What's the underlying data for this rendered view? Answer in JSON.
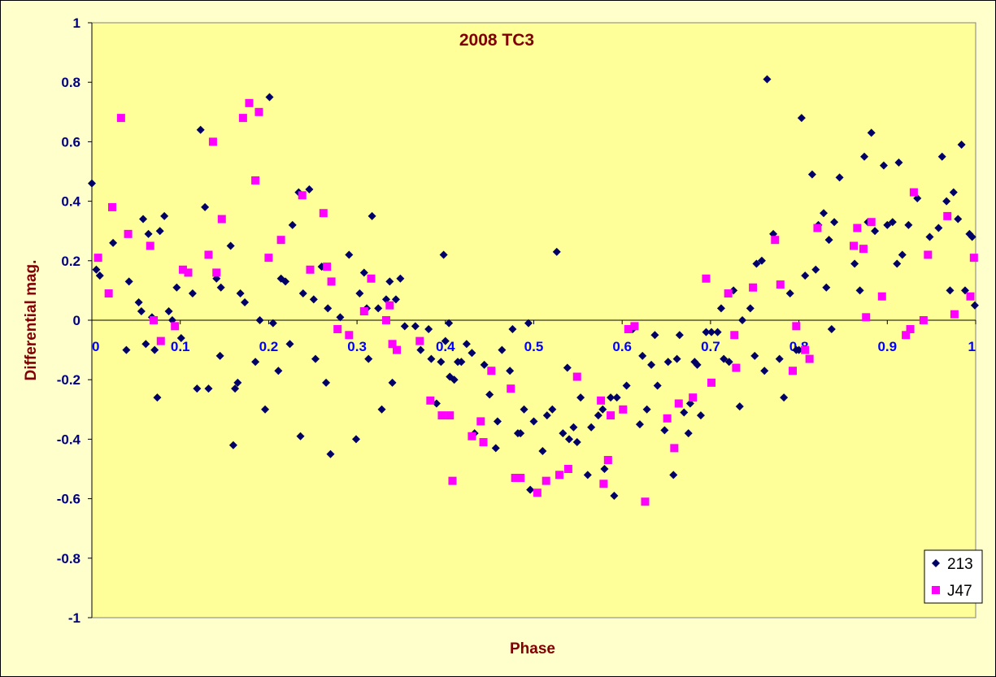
{
  "chart_data": {
    "type": "scatter",
    "title": "2008 TC3",
    "xlabel": "Phase",
    "ylabel": "Differential mag.",
    "xlim": [
      0,
      1
    ],
    "ylim": [
      -1,
      1
    ],
    "xticks": [
      "0",
      "0.1",
      "0.2",
      "0.3",
      "0.4",
      "0.5",
      "0.6",
      "0.7",
      "0.8",
      "0.9",
      "1"
    ],
    "yticks": [
      "1",
      "0.8",
      "0.6",
      "0.4",
      "0.2",
      "0",
      "-0.2",
      "-0.4",
      "-0.6",
      "-0.8",
      "-1"
    ],
    "grid": false,
    "legend_position": "bottom-right",
    "colors": {
      "plot_bg": "#ffff99",
      "chart_bg": "#ffffcc",
      "title": "#800000",
      "x_ticks": "#0000ff",
      "y_ticks": "#000080"
    },
    "series": [
      {
        "name": "213",
        "marker": "diamond",
        "color": "#000066",
        "points": [
          [
            0.0,
            0.46
          ],
          [
            0.005,
            0.17
          ],
          [
            0.009,
            0.15
          ],
          [
            0.024,
            0.26
          ],
          [
            0.039,
            -0.1
          ],
          [
            0.042,
            0.13
          ],
          [
            0.053,
            0.06
          ],
          [
            0.056,
            0.03
          ],
          [
            0.058,
            0.34
          ],
          [
            0.061,
            -0.08
          ],
          [
            0.064,
            0.29
          ],
          [
            0.068,
            0.01
          ],
          [
            0.071,
            -0.1
          ],
          [
            0.074,
            -0.26
          ],
          [
            0.077,
            0.3
          ],
          [
            0.082,
            0.35
          ],
          [
            0.087,
            0.03
          ],
          [
            0.091,
            0.0
          ],
          [
            0.096,
            0.11
          ],
          [
            0.101,
            -0.06
          ],
          [
            0.114,
            0.09
          ],
          [
            0.119,
            -0.23
          ],
          [
            0.123,
            0.64
          ],
          [
            0.128,
            0.38
          ],
          [
            0.132,
            -0.23
          ],
          [
            0.141,
            0.14
          ],
          [
            0.145,
            -0.12
          ],
          [
            0.146,
            0.11
          ],
          [
            0.157,
            0.25
          ],
          [
            0.16,
            -0.42
          ],
          [
            0.162,
            -0.23
          ],
          [
            0.165,
            -0.21
          ],
          [
            0.168,
            0.09
          ],
          [
            0.173,
            0.06
          ],
          [
            0.185,
            -0.14
          ],
          [
            0.19,
            0.0
          ],
          [
            0.196,
            -0.3
          ],
          [
            0.201,
            0.75
          ],
          [
            0.205,
            -0.01
          ],
          [
            0.211,
            -0.17
          ],
          [
            0.214,
            0.14
          ],
          [
            0.219,
            0.13
          ],
          [
            0.224,
            -0.08
          ],
          [
            0.227,
            0.32
          ],
          [
            0.234,
            0.43
          ],
          [
            0.236,
            -0.39
          ],
          [
            0.239,
            0.09
          ],
          [
            0.246,
            0.44
          ],
          [
            0.251,
            0.07
          ],
          [
            0.253,
            -0.13
          ],
          [
            0.26,
            0.18
          ],
          [
            0.265,
            -0.21
          ],
          [
            0.267,
            0.04
          ],
          [
            0.27,
            -0.45
          ],
          [
            0.281,
            0.01
          ],
          [
            0.291,
            0.22
          ],
          [
            0.299,
            -0.4
          ],
          [
            0.303,
            0.09
          ],
          [
            0.308,
            0.16
          ],
          [
            0.311,
            0.04
          ],
          [
            0.313,
            -0.13
          ],
          [
            0.317,
            0.35
          ],
          [
            0.324,
            0.04
          ],
          [
            0.328,
            -0.3
          ],
          [
            0.333,
            0.07
          ],
          [
            0.337,
            0.13
          ],
          [
            0.34,
            -0.21
          ],
          [
            0.344,
            0.07
          ],
          [
            0.349,
            0.14
          ],
          [
            0.354,
            -0.02
          ],
          [
            0.366,
            -0.02
          ],
          [
            0.372,
            -0.1
          ],
          [
            0.381,
            -0.03
          ],
          [
            0.384,
            -0.13
          ],
          [
            0.39,
            -0.28
          ],
          [
            0.395,
            -0.14
          ],
          [
            0.398,
            0.22
          ],
          [
            0.4,
            -0.07
          ],
          [
            0.404,
            -0.01
          ],
          [
            0.405,
            -0.19
          ],
          [
            0.41,
            -0.2
          ],
          [
            0.414,
            -0.14
          ],
          [
            0.418,
            -0.14
          ],
          [
            0.424,
            -0.08
          ],
          [
            0.43,
            -0.11
          ],
          [
            0.433,
            -0.38
          ],
          [
            0.444,
            -0.15
          ],
          [
            0.45,
            -0.25
          ],
          [
            0.457,
            -0.43
          ],
          [
            0.459,
            -0.34
          ],
          [
            0.464,
            -0.1
          ],
          [
            0.473,
            -0.17
          ],
          [
            0.476,
            -0.03
          ],
          [
            0.482,
            -0.38
          ],
          [
            0.485,
            -0.38
          ],
          [
            0.489,
            -0.3
          ],
          [
            0.494,
            -0.01
          ],
          [
            0.496,
            -0.57
          ],
          [
            0.5,
            -0.34
          ],
          [
            0.51,
            -0.44
          ],
          [
            0.515,
            -0.32
          ],
          [
            0.521,
            -0.3
          ],
          [
            0.526,
            0.23
          ],
          [
            0.533,
            -0.38
          ],
          [
            0.538,
            -0.16
          ],
          [
            0.54,
            -0.4
          ],
          [
            0.545,
            -0.36
          ],
          [
            0.549,
            -0.41
          ],
          [
            0.553,
            -0.26
          ],
          [
            0.561,
            -0.52
          ],
          [
            0.565,
            -0.36
          ],
          [
            0.573,
            -0.32
          ],
          [
            0.578,
            -0.3
          ],
          [
            0.58,
            -0.5
          ],
          [
            0.587,
            -0.26
          ],
          [
            0.591,
            -0.59
          ],
          [
            0.594,
            -0.26
          ],
          [
            0.605,
            -0.22
          ],
          [
            0.612,
            -0.03
          ],
          [
            0.62,
            -0.35
          ],
          [
            0.623,
            -0.12
          ],
          [
            0.628,
            -0.3
          ],
          [
            0.633,
            -0.15
          ],
          [
            0.637,
            -0.05
          ],
          [
            0.64,
            -0.22
          ],
          [
            0.648,
            -0.37
          ],
          [
            0.652,
            -0.14
          ],
          [
            0.658,
            -0.52
          ],
          [
            0.662,
            -0.13
          ],
          [
            0.665,
            -0.05
          ],
          [
            0.67,
            -0.31
          ],
          [
            0.675,
            -0.38
          ],
          [
            0.677,
            -0.28
          ],
          [
            0.682,
            -0.14
          ],
          [
            0.685,
            -0.15
          ],
          [
            0.689,
            -0.32
          ],
          [
            0.695,
            -0.04
          ],
          [
            0.701,
            -0.04
          ],
          [
            0.708,
            -0.04
          ],
          [
            0.712,
            0.04
          ],
          [
            0.715,
            -0.13
          ],
          [
            0.721,
            -0.14
          ],
          [
            0.726,
            0.1
          ],
          [
            0.733,
            -0.29
          ],
          [
            0.736,
            0.0
          ],
          [
            0.745,
            0.04
          ],
          [
            0.75,
            -0.12
          ],
          [
            0.752,
            0.19
          ],
          [
            0.758,
            0.2
          ],
          [
            0.761,
            -0.17
          ],
          [
            0.764,
            0.81
          ],
          [
            0.771,
            0.29
          ],
          [
            0.778,
            -0.13
          ],
          [
            0.783,
            -0.26
          ],
          [
            0.79,
            0.09
          ],
          [
            0.797,
            -0.1
          ],
          [
            0.8,
            -0.1
          ],
          [
            0.803,
            0.68
          ],
          [
            0.807,
            0.15
          ],
          [
            0.815,
            0.49
          ],
          [
            0.819,
            0.17
          ],
          [
            0.822,
            0.32
          ],
          [
            0.828,
            0.36
          ],
          [
            0.831,
            0.11
          ],
          [
            0.834,
            0.27
          ],
          [
            0.837,
            -0.03
          ],
          [
            0.84,
            0.33
          ],
          [
            0.846,
            0.48
          ],
          [
            0.863,
            0.19
          ],
          [
            0.869,
            0.1
          ],
          [
            0.874,
            0.55
          ],
          [
            0.878,
            0.33
          ],
          [
            0.882,
            0.63
          ],
          [
            0.886,
            0.3
          ],
          [
            0.896,
            0.52
          ],
          [
            0.9,
            0.32
          ],
          [
            0.906,
            0.33
          ],
          [
            0.911,
            0.19
          ],
          [
            0.913,
            0.53
          ],
          [
            0.917,
            0.22
          ],
          [
            0.924,
            0.32
          ],
          [
            0.934,
            0.41
          ],
          [
            0.948,
            0.28
          ],
          [
            0.958,
            0.31
          ],
          [
            0.962,
            0.55
          ],
          [
            0.967,
            0.4
          ],
          [
            0.971,
            0.1
          ],
          [
            0.975,
            0.43
          ],
          [
            0.98,
            0.34
          ],
          [
            0.984,
            0.59
          ],
          [
            0.988,
            0.1
          ],
          [
            0.993,
            0.29
          ],
          [
            0.996,
            0.28
          ],
          [
            0.999,
            0.05
          ]
        ]
      },
      {
        "name": "J47",
        "marker": "square",
        "color": "#ff00ff",
        "points": [
          [
            0.007,
            0.21
          ],
          [
            0.019,
            0.09
          ],
          [
            0.023,
            0.38
          ],
          [
            0.033,
            0.68
          ],
          [
            0.041,
            0.29
          ],
          [
            0.066,
            0.25
          ],
          [
            0.07,
            0.0
          ],
          [
            0.078,
            -0.07
          ],
          [
            0.094,
            -0.02
          ],
          [
            0.103,
            0.17
          ],
          [
            0.109,
            0.16
          ],
          [
            0.132,
            0.22
          ],
          [
            0.137,
            0.6
          ],
          [
            0.141,
            0.16
          ],
          [
            0.147,
            0.34
          ],
          [
            0.171,
            0.68
          ],
          [
            0.178,
            0.73
          ],
          [
            0.185,
            0.47
          ],
          [
            0.189,
            0.7
          ],
          [
            0.2,
            0.21
          ],
          [
            0.214,
            0.27
          ],
          [
            0.238,
            0.42
          ],
          [
            0.247,
            0.17
          ],
          [
            0.262,
            0.36
          ],
          [
            0.266,
            0.18
          ],
          [
            0.271,
            0.13
          ],
          [
            0.278,
            -0.03
          ],
          [
            0.291,
            -0.05
          ],
          [
            0.308,
            0.03
          ],
          [
            0.316,
            0.14
          ],
          [
            0.333,
            0.0
          ],
          [
            0.337,
            0.05
          ],
          [
            0.34,
            -0.08
          ],
          [
            0.345,
            -0.1
          ],
          [
            0.371,
            -0.07
          ],
          [
            0.383,
            -0.27
          ],
          [
            0.396,
            -0.32
          ],
          [
            0.405,
            -0.32
          ],
          [
            0.408,
            -0.54
          ],
          [
            0.43,
            -0.39
          ],
          [
            0.44,
            -0.34
          ],
          [
            0.443,
            -0.41
          ],
          [
            0.452,
            -0.17
          ],
          [
            0.474,
            -0.23
          ],
          [
            0.479,
            -0.53
          ],
          [
            0.485,
            -0.53
          ],
          [
            0.504,
            -0.58
          ],
          [
            0.514,
            -0.54
          ],
          [
            0.529,
            -0.52
          ],
          [
            0.539,
            -0.5
          ],
          [
            0.549,
            -0.19
          ],
          [
            0.576,
            -0.27
          ],
          [
            0.579,
            -0.55
          ],
          [
            0.584,
            -0.47
          ],
          [
            0.587,
            -0.32
          ],
          [
            0.601,
            -0.3
          ],
          [
            0.607,
            -0.03
          ],
          [
            0.614,
            -0.02
          ],
          [
            0.626,
            -0.61
          ],
          [
            0.651,
            -0.33
          ],
          [
            0.659,
            -0.43
          ],
          [
            0.664,
            -0.28
          ],
          [
            0.68,
            -0.26
          ],
          [
            0.695,
            0.14
          ],
          [
            0.701,
            -0.21
          ],
          [
            0.72,
            0.09
          ],
          [
            0.727,
            -0.05
          ],
          [
            0.729,
            -0.16
          ],
          [
            0.748,
            0.11
          ],
          [
            0.773,
            0.27
          ],
          [
            0.779,
            0.12
          ],
          [
            0.793,
            -0.17
          ],
          [
            0.797,
            -0.02
          ],
          [
            0.807,
            -0.1
          ],
          [
            0.812,
            -0.13
          ],
          [
            0.821,
            0.31
          ],
          [
            0.862,
            0.25
          ],
          [
            0.866,
            0.31
          ],
          [
            0.873,
            0.24
          ],
          [
            0.876,
            0.01
          ],
          [
            0.882,
            0.33
          ],
          [
            0.894,
            0.08
          ],
          [
            0.921,
            -0.05
          ],
          [
            0.926,
            -0.03
          ],
          [
            0.93,
            0.43
          ],
          [
            0.941,
            0.0
          ],
          [
            0.946,
            0.22
          ],
          [
            0.968,
            0.35
          ],
          [
            0.976,
            0.02
          ],
          [
            0.994,
            0.08
          ],
          [
            0.998,
            0.21
          ]
        ]
      }
    ]
  }
}
